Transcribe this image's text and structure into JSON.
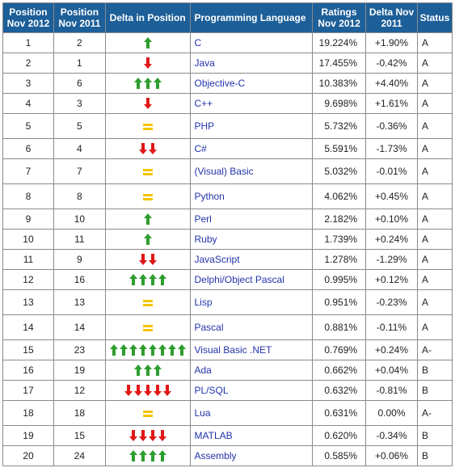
{
  "headers": {
    "pos2012": "Position Nov 2012",
    "pos2011": "Position Nov 2011",
    "delta_pos": "Delta in Position",
    "language": "Programming Language",
    "ratings": "Ratings Nov 2012",
    "delta_rating": "Delta Nov 2011",
    "status": "Status"
  },
  "colors": {
    "header_bg": "#1d5f98",
    "up_arrow": "#2e9e2e",
    "down_arrow": "#e01818",
    "equal": "#f4c400",
    "language_text": "#2233aa"
  },
  "rows": [
    {
      "pos2012": "1",
      "pos2011": "2",
      "delta": 1,
      "lang": "C",
      "rating": "19.224%",
      "change": "+1.90%",
      "status": "A",
      "h": 24
    },
    {
      "pos2012": "2",
      "pos2011": "1",
      "delta": -1,
      "lang": "Java",
      "rating": "17.455%",
      "change": "-0.42%",
      "status": "A",
      "h": 24
    },
    {
      "pos2012": "3",
      "pos2011": "6",
      "delta": 3,
      "lang": "Objective-C",
      "rating": "10.383%",
      "change": "+4.40%",
      "status": "A",
      "h": 25
    },
    {
      "pos2012": "4",
      "pos2011": "3",
      "delta": -1,
      "lang": "C++",
      "rating": "9.698%",
      "change": "+1.61%",
      "status": "A",
      "h": 25
    },
    {
      "pos2012": "5",
      "pos2011": "5",
      "delta": 0,
      "lang": "PHP",
      "rating": "5.732%",
      "change": "-0.36%",
      "status": "A",
      "h": 31
    },
    {
      "pos2012": "6",
      "pos2011": "4",
      "delta": -2,
      "lang": "C#",
      "rating": "5.591%",
      "change": "-1.73%",
      "status": "A",
      "h": 24
    },
    {
      "pos2012": "7",
      "pos2011": "7",
      "delta": 0,
      "lang": "(Visual) Basic",
      "rating": "5.032%",
      "change": "-0.01%",
      "status": "A",
      "h": 31
    },
    {
      "pos2012": "8",
      "pos2011": "8",
      "delta": 0,
      "lang": "Python",
      "rating": "4.062%",
      "change": "+0.45%",
      "status": "A",
      "h": 31
    },
    {
      "pos2012": "9",
      "pos2011": "10",
      "delta": 1,
      "lang": "Perl",
      "rating": "2.182%",
      "change": "+0.10%",
      "status": "A",
      "h": 24
    },
    {
      "pos2012": "10",
      "pos2011": "11",
      "delta": 1,
      "lang": "Ruby",
      "rating": "1.739%",
      "change": "+0.24%",
      "status": "A",
      "h": 24
    },
    {
      "pos2012": "11",
      "pos2011": "9",
      "delta": -2,
      "lang": "JavaScript",
      "rating": "1.278%",
      "change": "-1.29%",
      "status": "A",
      "h": 24
    },
    {
      "pos2012": "12",
      "pos2011": "16",
      "delta": 4,
      "lang": "Delphi/Object Pascal",
      "rating": "0.995%",
      "change": "+0.12%",
      "status": "A",
      "h": 24
    },
    {
      "pos2012": "13",
      "pos2011": "13",
      "delta": 0,
      "lang": "Lisp",
      "rating": "0.951%",
      "change": "-0.23%",
      "status": "A",
      "h": 31
    },
    {
      "pos2012": "14",
      "pos2011": "14",
      "delta": 0,
      "lang": "Pascal",
      "rating": "0.881%",
      "change": "-0.11%",
      "status": "A",
      "h": 31
    },
    {
      "pos2012": "15",
      "pos2011": "23",
      "delta": 8,
      "lang": "Visual Basic .NET",
      "rating": "0.769%",
      "change": "+0.24%",
      "status": "A-",
      "h": 24
    },
    {
      "pos2012": "16",
      "pos2011": "19",
      "delta": 3,
      "lang": "Ada",
      "rating": "0.662%",
      "change": "+0.04%",
      "status": "B",
      "h": 24
    },
    {
      "pos2012": "17",
      "pos2011": "12",
      "delta": -5,
      "lang": "PL/SQL",
      "rating": "0.632%",
      "change": "-0.81%",
      "status": "B",
      "h": 24
    },
    {
      "pos2012": "18",
      "pos2011": "18",
      "delta": 0,
      "lang": "Lua",
      "rating": "0.631%",
      "change": "0.00%",
      "status": "A-",
      "h": 31
    },
    {
      "pos2012": "19",
      "pos2011": "15",
      "delta": -4,
      "lang": "MATLAB",
      "rating": "0.620%",
      "change": "-0.34%",
      "status": "B",
      "h": 24
    },
    {
      "pos2012": "20",
      "pos2011": "24",
      "delta": 4,
      "lang": "Assembly",
      "rating": "0.585%",
      "change": "+0.06%",
      "status": "B",
      "h": 24
    }
  ]
}
